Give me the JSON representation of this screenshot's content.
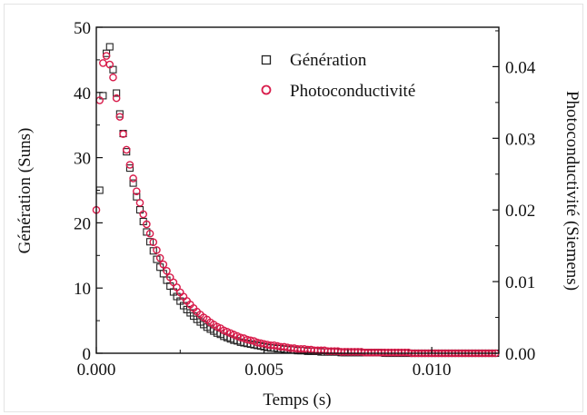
{
  "chart_data": {
    "type": "scatter",
    "xlabel": "Temps (s)",
    "ylabel_left": "Génération (Suns)",
    "ylabel_right": "Photoconductivité (Siemens)",
    "xlim": [
      0.0,
      0.012
    ],
    "ylim_left": [
      0,
      50
    ],
    "ylim_right": [
      0.0,
      0.0455
    ],
    "x_ticks": [
      "0.000",
      "0.005",
      "0.010"
    ],
    "y_left_ticks": [
      "0",
      "10",
      "20",
      "30",
      "40",
      "50"
    ],
    "y_right_ticks": [
      "0.00",
      "0.01",
      "0.02",
      "0.03",
      "0.04"
    ],
    "grid": false,
    "legend_position": "top-right",
    "colors": {
      "generation": "#222222",
      "photoconductivity": "#d81b4a"
    },
    "series": [
      {
        "name": "Génération",
        "axis": "left",
        "marker": "square",
        "x": [
          0.0001,
          0.0002,
          0.0003,
          0.0004,
          0.0005,
          0.0006,
          0.0007,
          0.0008,
          0.0009,
          0.001,
          0.0011,
          0.0012,
          0.0013,
          0.0014,
          0.0015,
          0.0016,
          0.0017,
          0.0018,
          0.0019,
          0.002,
          0.0021,
          0.0022,
          0.0023,
          0.0024,
          0.0025,
          0.0026,
          0.0027,
          0.0028,
          0.0029,
          0.003,
          0.0031,
          0.0032,
          0.0033,
          0.0034,
          0.0035,
          0.0036,
          0.0037,
          0.0038,
          0.0039,
          0.004,
          0.0041,
          0.0042,
          0.0043,
          0.0044,
          0.0045,
          0.0046,
          0.0047,
          0.0048,
          0.0049,
          0.005,
          0.0051,
          0.0052,
          0.0053,
          0.0054,
          0.0055,
          0.0056,
          0.0057,
          0.0058,
          0.0059,
          0.006,
          0.0061,
          0.0062,
          0.0063,
          0.0064,
          0.0065,
          0.0066,
          0.0067,
          0.0068,
          0.0069,
          0.007,
          0.0071,
          0.0072,
          0.0073,
          0.0074,
          0.0075,
          0.0076,
          0.0077,
          0.0078,
          0.0079,
          0.008,
          0.0081,
          0.0082,
          0.0083,
          0.0084,
          0.0085,
          0.0086,
          0.0087,
          0.0088,
          0.0089,
          0.009,
          0.0091,
          0.0092,
          0.0093,
          0.0094,
          0.0095,
          0.0096,
          0.0097,
          0.0098,
          0.0099,
          0.01,
          0.0101,
          0.0102,
          0.0103,
          0.0104,
          0.0105,
          0.0106,
          0.0107,
          0.0108,
          0.0109,
          0.011,
          0.0111,
          0.0112,
          0.0113,
          0.0114,
          0.0115,
          0.0116,
          0.0117,
          0.0118,
          0.0119
        ],
        "values": [
          25.0,
          39.5,
          46.0,
          47.0,
          43.5,
          39.9,
          36.7,
          33.7,
          30.9,
          28.4,
          26.1,
          24.0,
          22.0,
          20.2,
          18.6,
          17.1,
          15.7,
          14.4,
          13.2,
          12.2,
          11.2,
          10.3,
          9.4,
          8.7,
          8.0,
          7.3,
          6.7,
          6.2,
          5.7,
          5.2,
          4.8,
          4.4,
          4.0,
          3.7,
          3.4,
          3.1,
          2.9,
          2.6,
          2.4,
          2.2,
          2.0,
          1.9,
          1.7,
          1.6,
          1.5,
          1.4,
          1.3,
          1.2,
          1.1,
          1.0,
          0.9,
          0.8,
          0.8,
          0.7,
          0.7,
          0.6,
          0.6,
          0.5,
          0.5,
          0.4,
          0.4,
          0.4,
          0.3,
          0.3,
          0.3,
          0.3,
          0.2,
          0.2,
          0.2,
          0.2,
          0.2,
          0.2,
          0.1,
          0.1,
          0.1,
          0.1,
          0.1,
          0.1,
          0.1,
          0.1,
          0.1,
          0.1,
          0.1,
          0.1,
          0.1,
          0.0,
          0.0,
          0.0,
          0.0,
          0.0,
          0.0,
          0.0,
          0.0,
          0.0,
          0.0,
          0.0,
          0.0,
          0.0,
          0.0,
          0.0,
          0.0,
          0.0,
          0.0,
          0.0,
          0.0,
          0.0,
          0.0,
          0.0,
          0.0,
          0.0,
          0.0,
          0.0,
          0.0,
          0.0,
          0.0,
          0.0,
          0.0,
          0.0,
          0.0
        ]
      },
      {
        "name": "Photoconductivité",
        "axis": "right",
        "marker": "circle",
        "x": [
          0.0,
          0.0001,
          0.0002,
          0.0003,
          0.0004,
          0.0005,
          0.0006,
          0.0007,
          0.0008,
          0.0009,
          0.001,
          0.0011,
          0.0012,
          0.0013,
          0.0014,
          0.0015,
          0.0016,
          0.0017,
          0.0018,
          0.0019,
          0.002,
          0.0021,
          0.0022,
          0.0023,
          0.0024,
          0.0025,
          0.0026,
          0.0027,
          0.0028,
          0.0029,
          0.003,
          0.0031,
          0.0032,
          0.0033,
          0.0034,
          0.0035,
          0.0036,
          0.0037,
          0.0038,
          0.0039,
          0.004,
          0.0041,
          0.0042,
          0.0043,
          0.0044,
          0.0045,
          0.0046,
          0.0047,
          0.0048,
          0.0049,
          0.005,
          0.0051,
          0.0052,
          0.0053,
          0.0054,
          0.0055,
          0.0056,
          0.0057,
          0.0058,
          0.0059,
          0.006,
          0.0061,
          0.0062,
          0.0063,
          0.0064,
          0.0065,
          0.0066,
          0.0067,
          0.0068,
          0.0069,
          0.007,
          0.0071,
          0.0072,
          0.0073,
          0.0074,
          0.0075,
          0.0076,
          0.0077,
          0.0078,
          0.0079,
          0.008,
          0.0081,
          0.0082,
          0.0083,
          0.0084,
          0.0085,
          0.0086,
          0.0087,
          0.0088,
          0.0089,
          0.009,
          0.0091,
          0.0092,
          0.0093,
          0.0094,
          0.0095,
          0.0096,
          0.0097,
          0.0098,
          0.0099,
          0.01,
          0.0101,
          0.0102,
          0.0103,
          0.0104,
          0.0105,
          0.0106,
          0.0107,
          0.0108,
          0.0109,
          0.011,
          0.0111,
          0.0112,
          0.0113,
          0.0114,
          0.0115,
          0.0116,
          0.0117,
          0.0118,
          0.0119
        ],
        "values": [
          0.02,
          0.0353,
          0.0405,
          0.0415,
          0.0403,
          0.0385,
          0.0356,
          0.033,
          0.0306,
          0.0284,
          0.0263,
          0.0244,
          0.0226,
          0.021,
          0.0194,
          0.018,
          0.0167,
          0.0155,
          0.0144,
          0.0133,
          0.0124,
          0.0115,
          0.0106,
          0.0099,
          0.0092,
          0.0085,
          0.0079,
          0.0073,
          0.0068,
          0.0063,
          0.0058,
          0.0054,
          0.005,
          0.0047,
          0.0043,
          0.004,
          0.0037,
          0.0035,
          0.0032,
          0.003,
          0.0028,
          0.0026,
          0.0024,
          0.0022,
          0.0021,
          0.0019,
          0.0018,
          0.0017,
          0.0015,
          0.0014,
          0.0013,
          0.0012,
          0.0011,
          0.0011,
          0.001,
          0.0009,
          0.0009,
          0.0008,
          0.0007,
          0.0007,
          0.0006,
          0.0006,
          0.0006,
          0.0005,
          0.0005,
          0.0004,
          0.0004,
          0.0004,
          0.0004,
          0.0003,
          0.0003,
          0.0003,
          0.0003,
          0.0002,
          0.0002,
          0.0002,
          0.0002,
          0.0002,
          0.0002,
          0.0002,
          0.0001,
          0.0001,
          0.0001,
          0.0001,
          0.0001,
          0.0001,
          0.0001,
          0.0001,
          0.0001,
          0.0001,
          0.0001,
          0.0001,
          0.0001,
          0.0001,
          0.0,
          0.0,
          0.0,
          0.0,
          0.0,
          0.0,
          0.0,
          0.0,
          0.0,
          0.0,
          0.0,
          0.0,
          0.0,
          0.0,
          0.0,
          0.0,
          0.0,
          0.0,
          0.0,
          0.0,
          0.0,
          0.0,
          0.0,
          0.0,
          0.0,
          0.0
        ]
      }
    ]
  }
}
